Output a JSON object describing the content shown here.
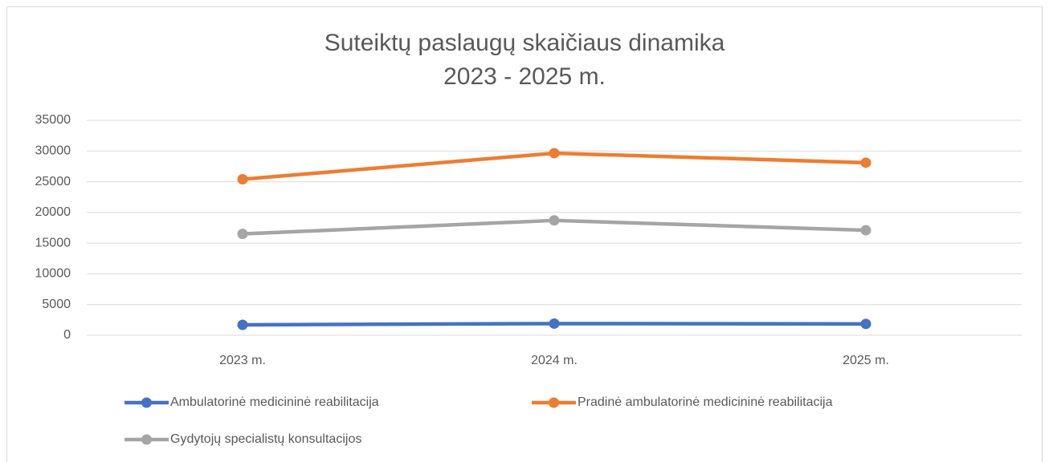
{
  "chart_data": {
    "type": "line",
    "title": "Suteiktų paslaugų skaičiaus dinamika",
    "subtitle": "2023 - 2025 m.",
    "categories": [
      "2023 m.",
      "2024 m.",
      "2025 m."
    ],
    "series": [
      {
        "name": "Ambulatorinė medicininė reabilitacija",
        "color": "#4472c4",
        "values": [
          1700,
          1900,
          1850
        ]
      },
      {
        "name": "Pradinė ambulatorinė medicininė reabilitacija",
        "color": "#ed7d31",
        "values": [
          25400,
          29650,
          28100
        ]
      },
      {
        "name": "Gydytojų specialistų konsultacijos",
        "color": "#a5a5a5",
        "values": [
          16500,
          18700,
          17100
        ]
      }
    ],
    "ylim": [
      0,
      35000
    ],
    "yticks": [
      0,
      5000,
      10000,
      15000,
      20000,
      25000,
      30000,
      35000
    ],
    "grid": true,
    "legend": "bottom"
  }
}
